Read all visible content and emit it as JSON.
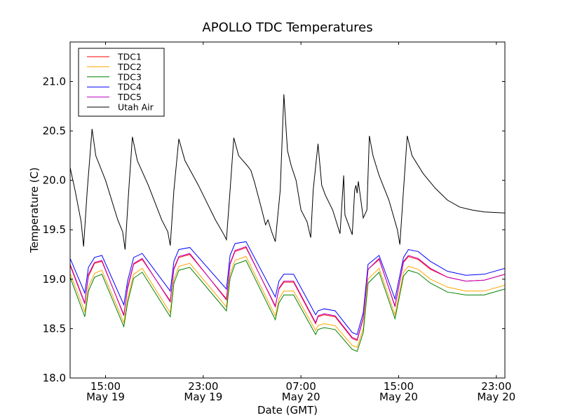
{
  "chart_data": {
    "type": "line",
    "title": "APOLLO TDC Temperatures",
    "xlabel": "Date (GMT)",
    "ylabel": "Temperature (C)",
    "x_units": "hours since 00:00 May 19 (GMT)",
    "xlim": [
      12.1,
      47.7
    ],
    "ylim": [
      18.0,
      21.4
    ],
    "yticks": [
      18.0,
      18.5,
      19.0,
      19.5,
      20.0,
      20.5,
      21.0
    ],
    "ytick_labels": [
      "18.0",
      "18.5",
      "19.0",
      "19.5",
      "20.0",
      "20.5",
      "21.0"
    ],
    "xticks": [
      15,
      23,
      31,
      39,
      47
    ],
    "xtick_labels": [
      {
        "time": "15:00",
        "date": "May 19"
      },
      {
        "time": "23:00",
        "date": "May 19"
      },
      {
        "time": "07:00",
        "date": "May 20"
      },
      {
        "time": "15:00",
        "date": "May 20"
      },
      {
        "time": "23:00",
        "date": "May 20"
      }
    ],
    "grid": false,
    "legend_position": "top-left",
    "series": [
      {
        "name": "TDC1",
        "color": "#ff0000",
        "x": [
          12.1,
          13.3,
          13.6,
          14.1,
          14.7,
          16.5,
          16.8,
          17.3,
          18.0,
          20.3,
          20.6,
          21.0,
          21.9,
          24.9,
          25.2,
          25.6,
          26.5,
          28.9,
          29.2,
          29.6,
          30.4,
          32.2,
          32.4,
          32.9,
          33.8,
          35.2,
          35.6,
          36.1,
          36.5,
          37.4,
          38.7,
          39.4,
          39.8,
          40.6,
          41.6,
          43.0,
          44.5,
          46.0,
          47.7
        ],
        "y": [
          19.15,
          18.76,
          19.03,
          19.16,
          19.18,
          18.64,
          18.9,
          19.15,
          19.2,
          18.78,
          19.1,
          19.22,
          19.25,
          18.8,
          19.15,
          19.28,
          19.32,
          18.73,
          18.9,
          18.97,
          18.97,
          18.55,
          18.62,
          18.64,
          18.62,
          18.4,
          18.38,
          18.6,
          19.1,
          19.2,
          18.73,
          19.17,
          19.23,
          19.2,
          19.1,
          19.02,
          18.98,
          18.99,
          19.05
        ]
      },
      {
        "name": "TDC2",
        "color": "#ffa500",
        "x": [
          12.1,
          13.3,
          13.6,
          14.1,
          14.7,
          16.5,
          16.8,
          17.3,
          18.0,
          20.3,
          20.6,
          21.0,
          21.9,
          24.9,
          25.2,
          25.6,
          26.5,
          28.9,
          29.2,
          29.6,
          30.4,
          32.2,
          32.4,
          32.9,
          33.8,
          35.2,
          35.6,
          36.1,
          36.5,
          37.4,
          38.7,
          39.4,
          39.8,
          40.6,
          41.6,
          43.0,
          44.5,
          46.0,
          47.7
        ],
        "y": [
          19.06,
          18.67,
          18.92,
          19.06,
          19.09,
          18.56,
          18.8,
          19.05,
          19.11,
          18.66,
          19.0,
          19.13,
          19.16,
          18.72,
          19.05,
          19.19,
          19.23,
          18.63,
          18.8,
          18.88,
          18.88,
          18.48,
          18.53,
          18.55,
          18.53,
          18.33,
          18.31,
          18.5,
          19.0,
          19.11,
          18.64,
          19.07,
          19.13,
          19.1,
          19.0,
          18.92,
          18.88,
          18.88,
          18.94
        ]
      },
      {
        "name": "TDC3",
        "color": "#008000",
        "x": [
          12.1,
          13.3,
          13.6,
          14.1,
          14.7,
          16.5,
          16.8,
          17.3,
          18.0,
          20.3,
          20.6,
          21.0,
          21.9,
          24.9,
          25.2,
          25.6,
          26.5,
          28.9,
          29.2,
          29.6,
          30.4,
          32.2,
          32.4,
          32.9,
          33.8,
          35.2,
          35.6,
          36.1,
          36.5,
          37.4,
          38.7,
          39.4,
          39.8,
          40.6,
          41.6,
          43.0,
          44.5,
          46.0,
          47.7
        ],
        "y": [
          19.02,
          18.62,
          18.88,
          19.02,
          19.05,
          18.52,
          18.76,
          19.01,
          19.07,
          18.62,
          18.96,
          19.09,
          19.12,
          18.68,
          19.01,
          19.15,
          19.19,
          18.59,
          18.76,
          18.84,
          18.84,
          18.44,
          18.49,
          18.51,
          18.49,
          18.29,
          18.27,
          18.46,
          18.96,
          19.07,
          18.6,
          19.03,
          19.09,
          19.06,
          18.96,
          18.87,
          18.84,
          18.84,
          18.9
        ]
      },
      {
        "name": "TDC4",
        "color": "#0000ff",
        "x": [
          12.1,
          13.3,
          13.6,
          14.1,
          14.7,
          16.5,
          16.8,
          17.3,
          18.0,
          20.3,
          20.6,
          21.0,
          21.9,
          24.9,
          25.2,
          25.6,
          26.5,
          28.9,
          29.2,
          29.6,
          30.4,
          32.2,
          32.4,
          32.9,
          33.8,
          35.2,
          35.6,
          36.1,
          36.5,
          37.4,
          38.7,
          39.4,
          39.8,
          40.6,
          41.6,
          43.0,
          44.5,
          46.0,
          47.7
        ],
        "y": [
          19.21,
          18.86,
          19.12,
          19.22,
          19.24,
          18.74,
          18.98,
          19.22,
          19.26,
          18.88,
          19.18,
          19.3,
          19.32,
          18.9,
          19.24,
          19.36,
          19.38,
          18.82,
          18.98,
          19.05,
          19.05,
          18.64,
          18.68,
          18.7,
          18.68,
          18.46,
          18.44,
          18.66,
          19.15,
          19.24,
          18.8,
          19.22,
          19.3,
          19.28,
          19.18,
          19.08,
          19.04,
          19.05,
          19.11
        ]
      },
      {
        "name": "TDC5",
        "color": "#bf00bf",
        "x": [
          12.1,
          13.3,
          13.6,
          14.1,
          14.7,
          16.5,
          16.8,
          17.3,
          18.0,
          20.3,
          20.6,
          21.0,
          21.9,
          24.9,
          25.2,
          25.6,
          26.5,
          28.9,
          29.2,
          29.6,
          30.4,
          32.2,
          32.4,
          32.9,
          33.8,
          35.2,
          35.6,
          36.1,
          36.5,
          37.4,
          38.7,
          39.4,
          39.8,
          40.6,
          41.6,
          43.0,
          44.5,
          46.0,
          47.7
        ],
        "y": [
          19.14,
          18.75,
          19.05,
          19.17,
          19.19,
          18.63,
          18.92,
          19.16,
          19.21,
          18.77,
          19.11,
          19.23,
          19.26,
          18.79,
          19.16,
          19.29,
          19.33,
          18.72,
          18.91,
          18.98,
          18.98,
          18.56,
          18.63,
          18.65,
          18.63,
          18.41,
          18.39,
          18.61,
          19.1,
          19.21,
          18.72,
          19.18,
          19.24,
          19.21,
          19.11,
          19.02,
          18.98,
          18.99,
          19.05
        ]
      },
      {
        "name": "Utah Air",
        "color": "#000000",
        "x": [
          12.1,
          12.5,
          13.0,
          13.2,
          13.5,
          13.9,
          14.2,
          15.0,
          16.0,
          16.4,
          16.6,
          16.9,
          17.2,
          17.6,
          18.5,
          19.6,
          20.1,
          20.3,
          20.6,
          21.0,
          21.5,
          22.6,
          24.0,
          24.7,
          24.9,
          25.2,
          25.5,
          25.9,
          26.6,
          26.9,
          27.2,
          27.8,
          28.1,
          28.3,
          28.6,
          28.9,
          29.3,
          29.6,
          29.9,
          30.2,
          30.6,
          31.0,
          31.5,
          31.8,
          32.0,
          32.4,
          32.7,
          33.0,
          33.6,
          34.2,
          34.5,
          34.6,
          35.2,
          35.4,
          35.5,
          35.6,
          35.7,
          36.1,
          36.4,
          36.6,
          36.9,
          37.4,
          38.2,
          38.9,
          39.1,
          39.4,
          39.7,
          40.1,
          41.0,
          42.0,
          43.0,
          44.0,
          45.0,
          46.0,
          47.7
        ],
        "y": [
          20.13,
          19.9,
          19.58,
          19.33,
          19.9,
          20.52,
          20.25,
          20.0,
          19.6,
          19.48,
          19.3,
          19.9,
          20.44,
          20.2,
          19.95,
          19.6,
          19.48,
          19.34,
          19.9,
          20.42,
          20.2,
          19.95,
          19.6,
          19.45,
          19.4,
          19.9,
          20.43,
          20.25,
          20.15,
          20.1,
          19.98,
          19.7,
          19.55,
          19.6,
          19.48,
          19.38,
          19.9,
          20.87,
          20.3,
          20.15,
          20.0,
          19.7,
          19.58,
          19.42,
          19.9,
          20.37,
          19.95,
          19.85,
          19.7,
          19.46,
          20.05,
          19.65,
          19.45,
          19.9,
          19.95,
          19.87,
          19.99,
          19.62,
          19.7,
          20.45,
          20.25,
          20.05,
          19.8,
          19.5,
          19.35,
          19.9,
          20.45,
          20.25,
          20.07,
          19.92,
          19.8,
          19.73,
          19.7,
          19.68,
          19.67
        ]
      }
    ]
  }
}
